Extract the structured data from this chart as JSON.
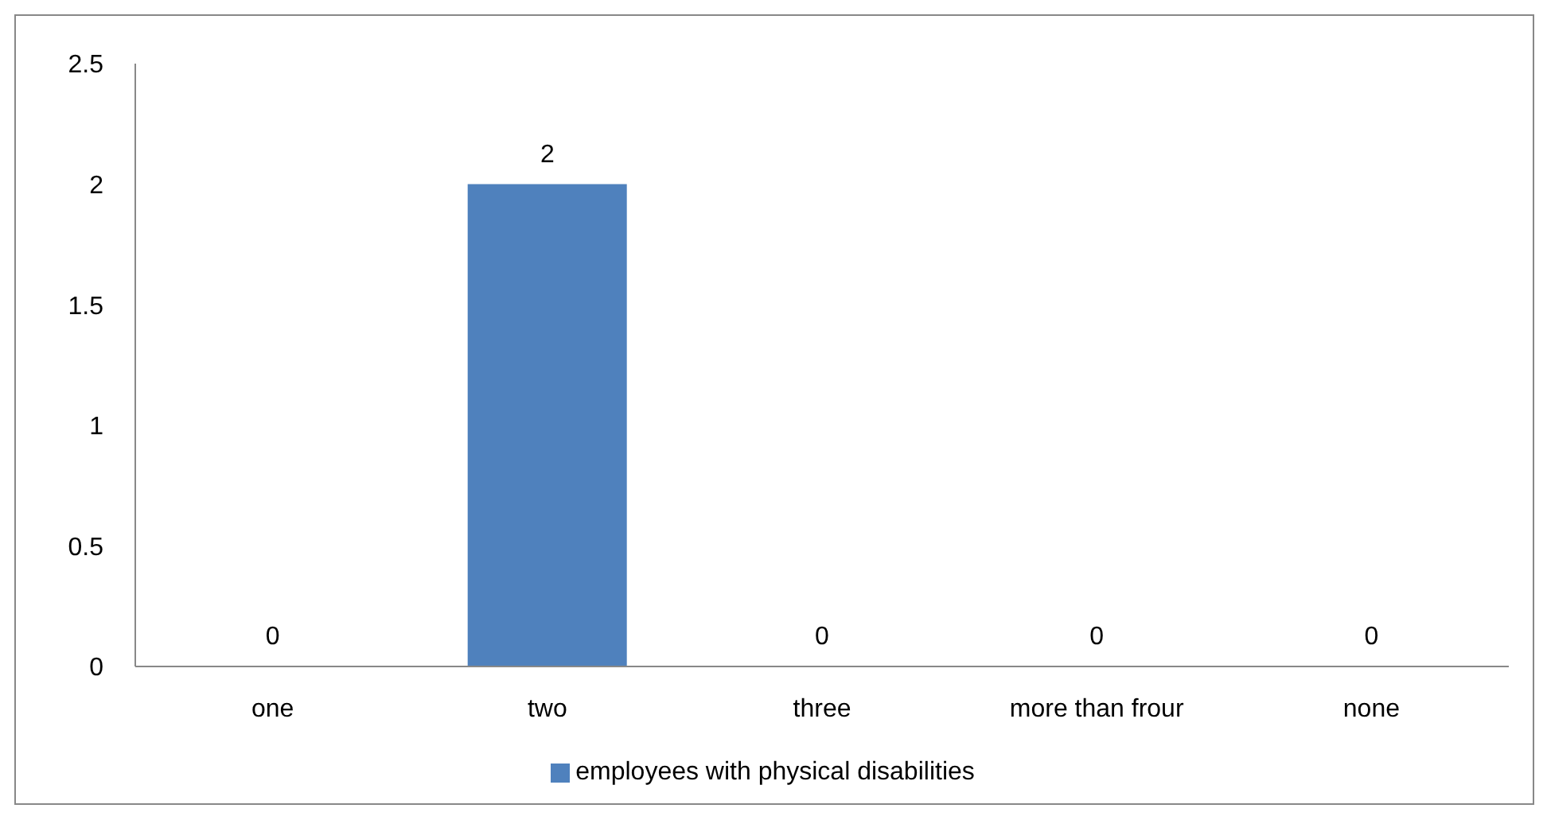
{
  "chart_data": {
    "type": "bar",
    "categories": [
      "one",
      "two",
      "three",
      "more than frour",
      "none"
    ],
    "series": [
      {
        "name": "employees with physical disabilities",
        "color": "#4f81bd",
        "values": [
          0,
          2,
          0,
          0,
          0
        ]
      }
    ],
    "ylim": [
      0,
      2.5
    ],
    "yticks": [
      0,
      0.5,
      1,
      1.5,
      2,
      2.5
    ],
    "grid": false,
    "legend": "bottom",
    "data_labels": true
  }
}
